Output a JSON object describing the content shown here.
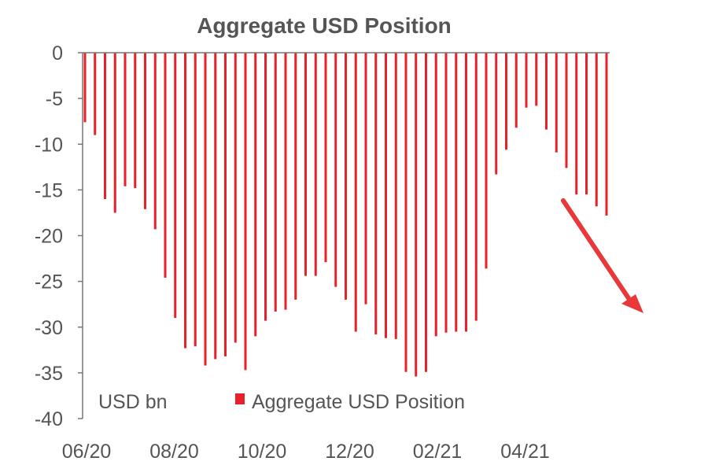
{
  "chart_data": {
    "type": "bar",
    "title": "Aggregate USD Position",
    "unit_label": "USD bn",
    "legend": [
      "Aggregate USD Position"
    ],
    "ylim": [
      -40,
      0
    ],
    "yticks": [
      0,
      -5,
      -10,
      -15,
      -20,
      -25,
      -30,
      -35,
      -40
    ],
    "xtick_labels": [
      "06/20",
      "08/20",
      "10/20",
      "12/20",
      "02/21",
      "04/21"
    ],
    "series": [
      {
        "name": "Aggregate USD Position",
        "values": [
          -7.6,
          -9.0,
          -16.0,
          -17.5,
          -14.6,
          -14.8,
          -17.1,
          -19.3,
          -24.6,
          -29.0,
          -32.3,
          -32.1,
          -34.2,
          -33.5,
          -33.2,
          -31.7,
          -34.7,
          -31.0,
          -29.3,
          -28.3,
          -28.1,
          -27.0,
          -24.4,
          -24.4,
          -22.9,
          -25.6,
          -27.0,
          -30.5,
          -27.5,
          -30.8,
          -31.2,
          -31.3,
          -34.9,
          -35.4,
          -34.9,
          -31.0,
          -30.6,
          -30.5,
          -30.5,
          -29.3,
          -23.6,
          -13.3,
          -10.6,
          -8.2,
          -6.0,
          -5.8,
          -8.4,
          -10.9,
          -12.6,
          -15.5,
          -15.5,
          -16.8,
          -17.8
        ]
      }
    ],
    "colors": {
      "bars": "#e8202a",
      "axis": "#777777",
      "text": "#555555",
      "annotation_arrow": "#e8383a"
    }
  }
}
